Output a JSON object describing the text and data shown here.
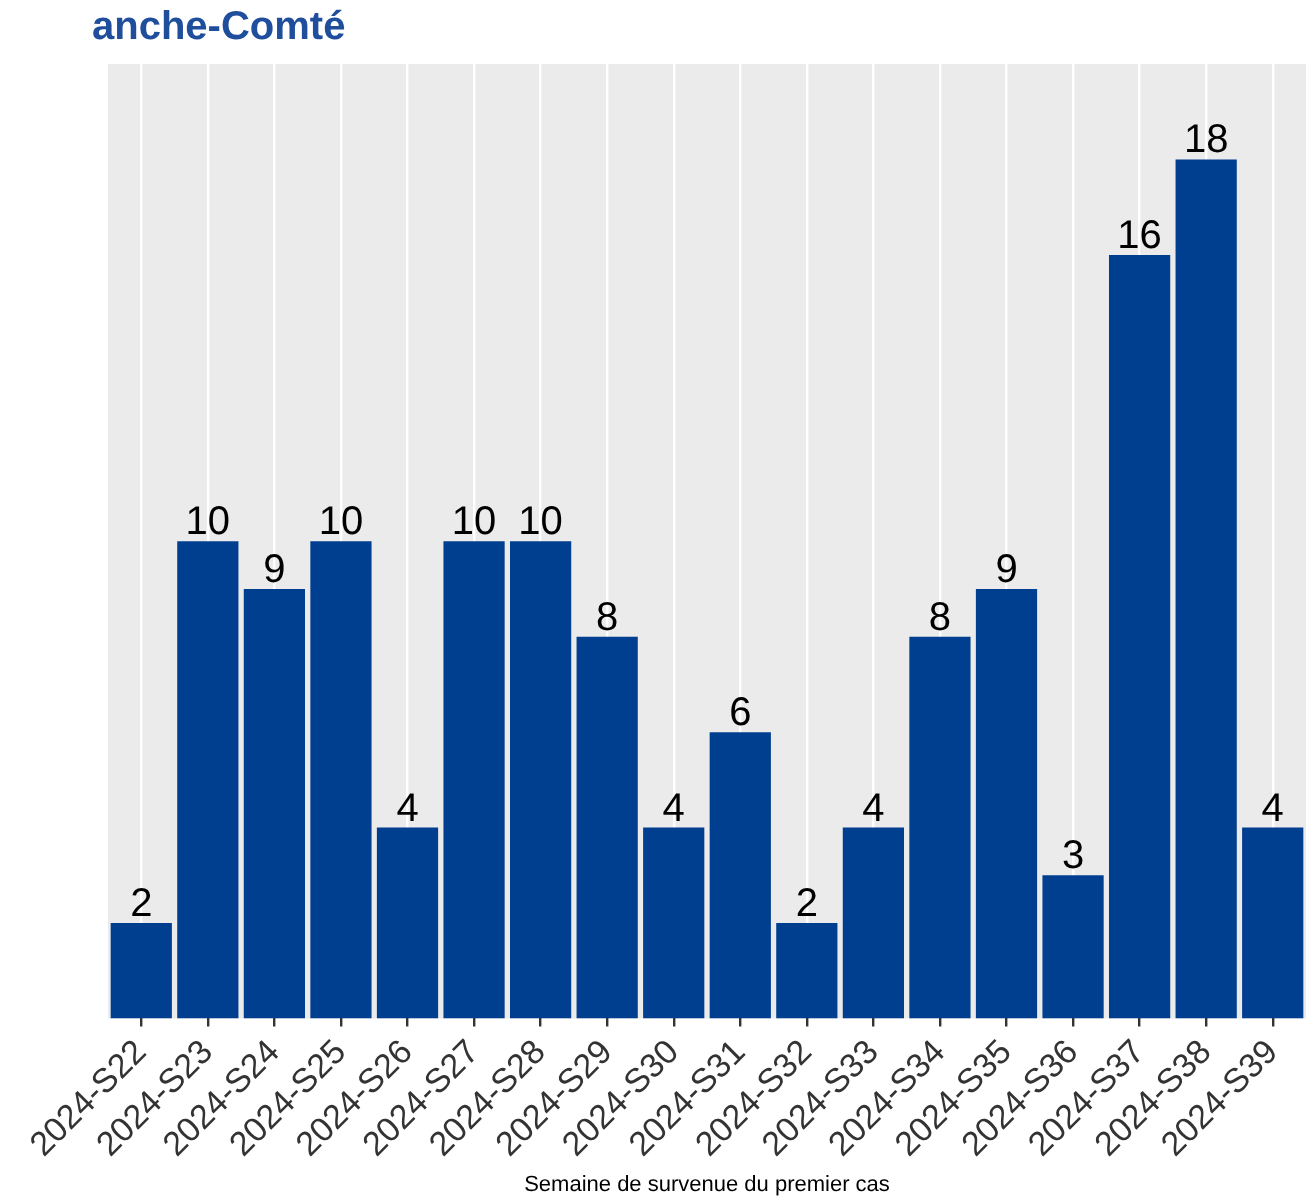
{
  "chart_data": {
    "type": "bar",
    "title": "anche-Comté",
    "xlabel": "Semaine de survenue du premier cas",
    "categories": [
      "2024-S22",
      "2024-S23",
      "2024-S24",
      "2024-S25",
      "2024-S26",
      "2024-S27",
      "2024-S28",
      "2024-S29",
      "2024-S30",
      "2024-S31",
      "2024-S32",
      "2024-S33",
      "2024-S34",
      "2024-S35",
      "2024-S36",
      "2024-S37",
      "2024-S38",
      "2024-S39"
    ],
    "values": [
      2,
      10,
      9,
      10,
      4,
      10,
      10,
      8,
      4,
      6,
      2,
      4,
      8,
      9,
      3,
      16,
      18,
      4
    ],
    "color": "#003f8f",
    "data_labels": true,
    "grid": "x",
    "legend": false
  }
}
